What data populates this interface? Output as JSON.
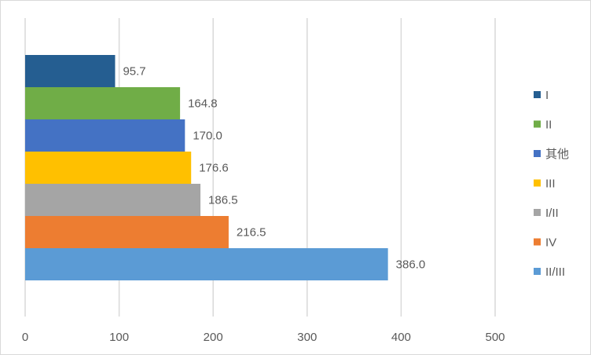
{
  "chart_data": {
    "type": "bar",
    "orientation": "horizontal",
    "title": "",
    "xlabel": "",
    "ylabel": "",
    "categories": [
      "I",
      "II",
      "其他",
      "III",
      "I/II",
      "IV",
      "II/III"
    ],
    "values": [
      95.7,
      164.8,
      170.0,
      176.6,
      186.5,
      216.5,
      386.0
    ],
    "value_labels": [
      "95.7",
      "164.8",
      "170.0",
      "176.6",
      "186.5",
      "216.5",
      "386.0"
    ],
    "colors": [
      "#255e91",
      "#70ad47",
      "#4472c4",
      "#ffc000",
      "#a5a5a5",
      "#ed7d31",
      "#5b9bd5"
    ],
    "xlim": [
      0,
      500
    ],
    "xticks": [
      0,
      100,
      200,
      300,
      400,
      500
    ],
    "xtick_labels": [
      "0",
      "100",
      "200",
      "300",
      "400",
      "500"
    ],
    "grid": true,
    "legend": {
      "position": "right",
      "entries": [
        "I",
        "II",
        "其他",
        "III",
        "I/II",
        "IV",
        "II/III"
      ]
    }
  }
}
